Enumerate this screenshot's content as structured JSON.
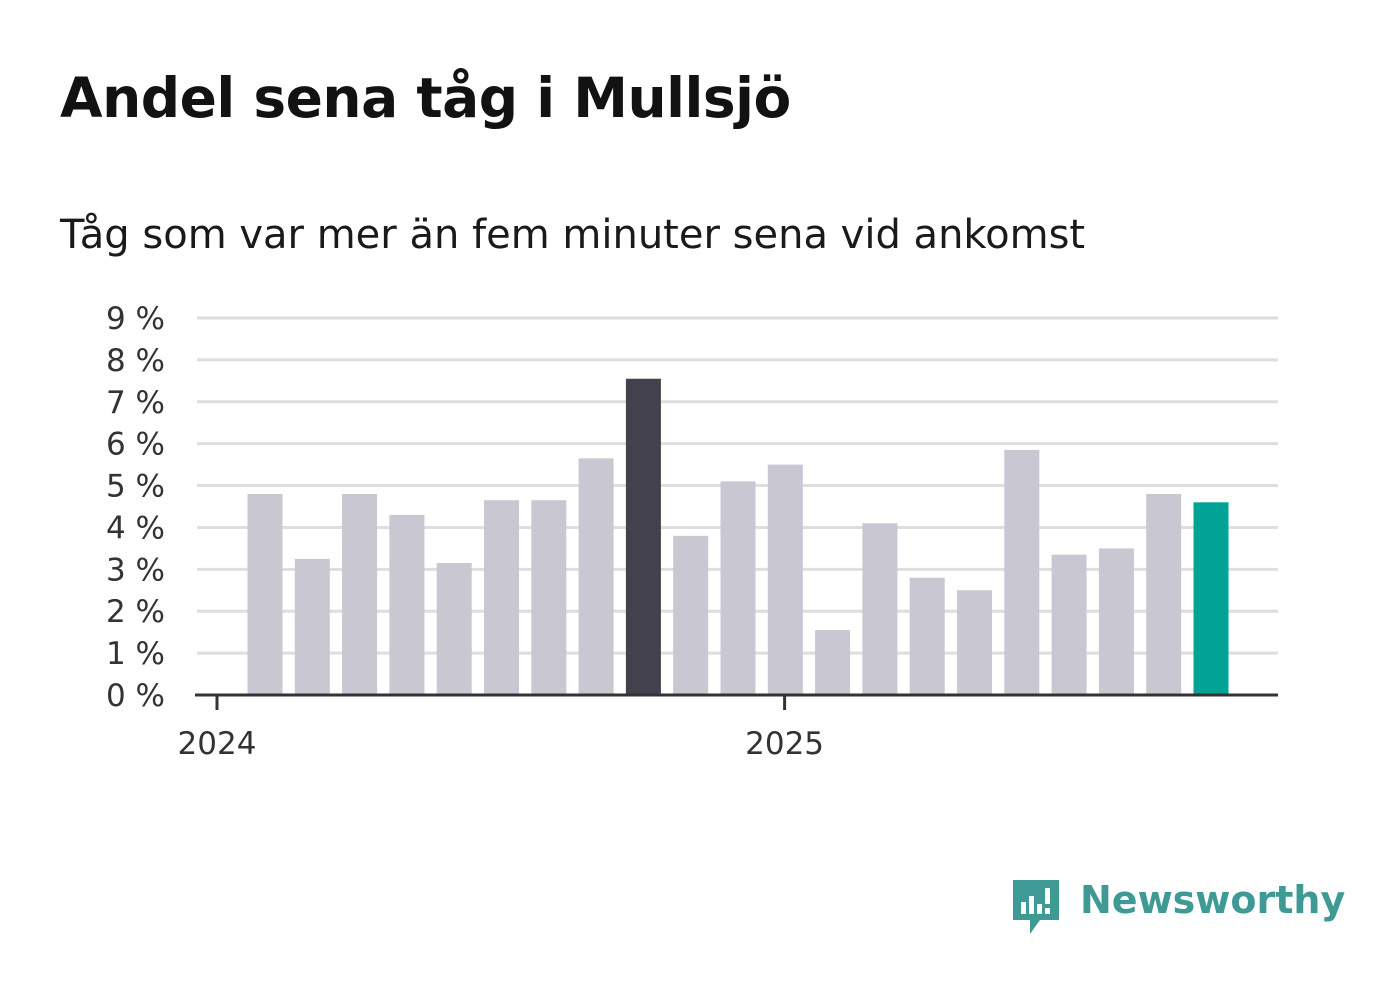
{
  "title": "Andel sena tåg i Mullsjö",
  "subtitle": "Tåg som var mer än fem minuter sena vid ankomst",
  "brand": {
    "name": "Newsworthy",
    "icon": "newsworthy-logo-icon"
  },
  "colors": {
    "bar_default": "#c8c7d2",
    "bar_highlight_dark": "#43414d",
    "bar_highlight_accent": "#00a396",
    "grid": "#dedede",
    "axis": "#333333",
    "brand": "#3f9a95"
  },
  "chart_data": {
    "type": "bar",
    "title": "Andel sena tåg i Mullsjö",
    "subtitle": "Tåg som var mer än fem minuter sena vid ankomst",
    "xlabel": "",
    "ylabel": "",
    "ylim": [
      0,
      9
    ],
    "y_ticks": [
      "0 %",
      "1 %",
      "2 %",
      "3 %",
      "4 %",
      "5 %",
      "6 %",
      "7 %",
      "8 %",
      "9 %"
    ],
    "x_ticks": [
      {
        "label": "2024",
        "at_index": 0
      },
      {
        "label": "2025",
        "at_index": 12
      }
    ],
    "grid": true,
    "values": [
      4.8,
      3.25,
      4.8,
      4.3,
      3.15,
      4.65,
      4.65,
      5.65,
      7.55,
      3.8,
      5.1,
      5.5,
      1.55,
      4.1,
      2.8,
      2.5,
      5.85,
      3.35,
      3.5,
      4.8,
      4.6
    ],
    "highlight": {
      "8": "dark",
      "20": "accent"
    }
  }
}
